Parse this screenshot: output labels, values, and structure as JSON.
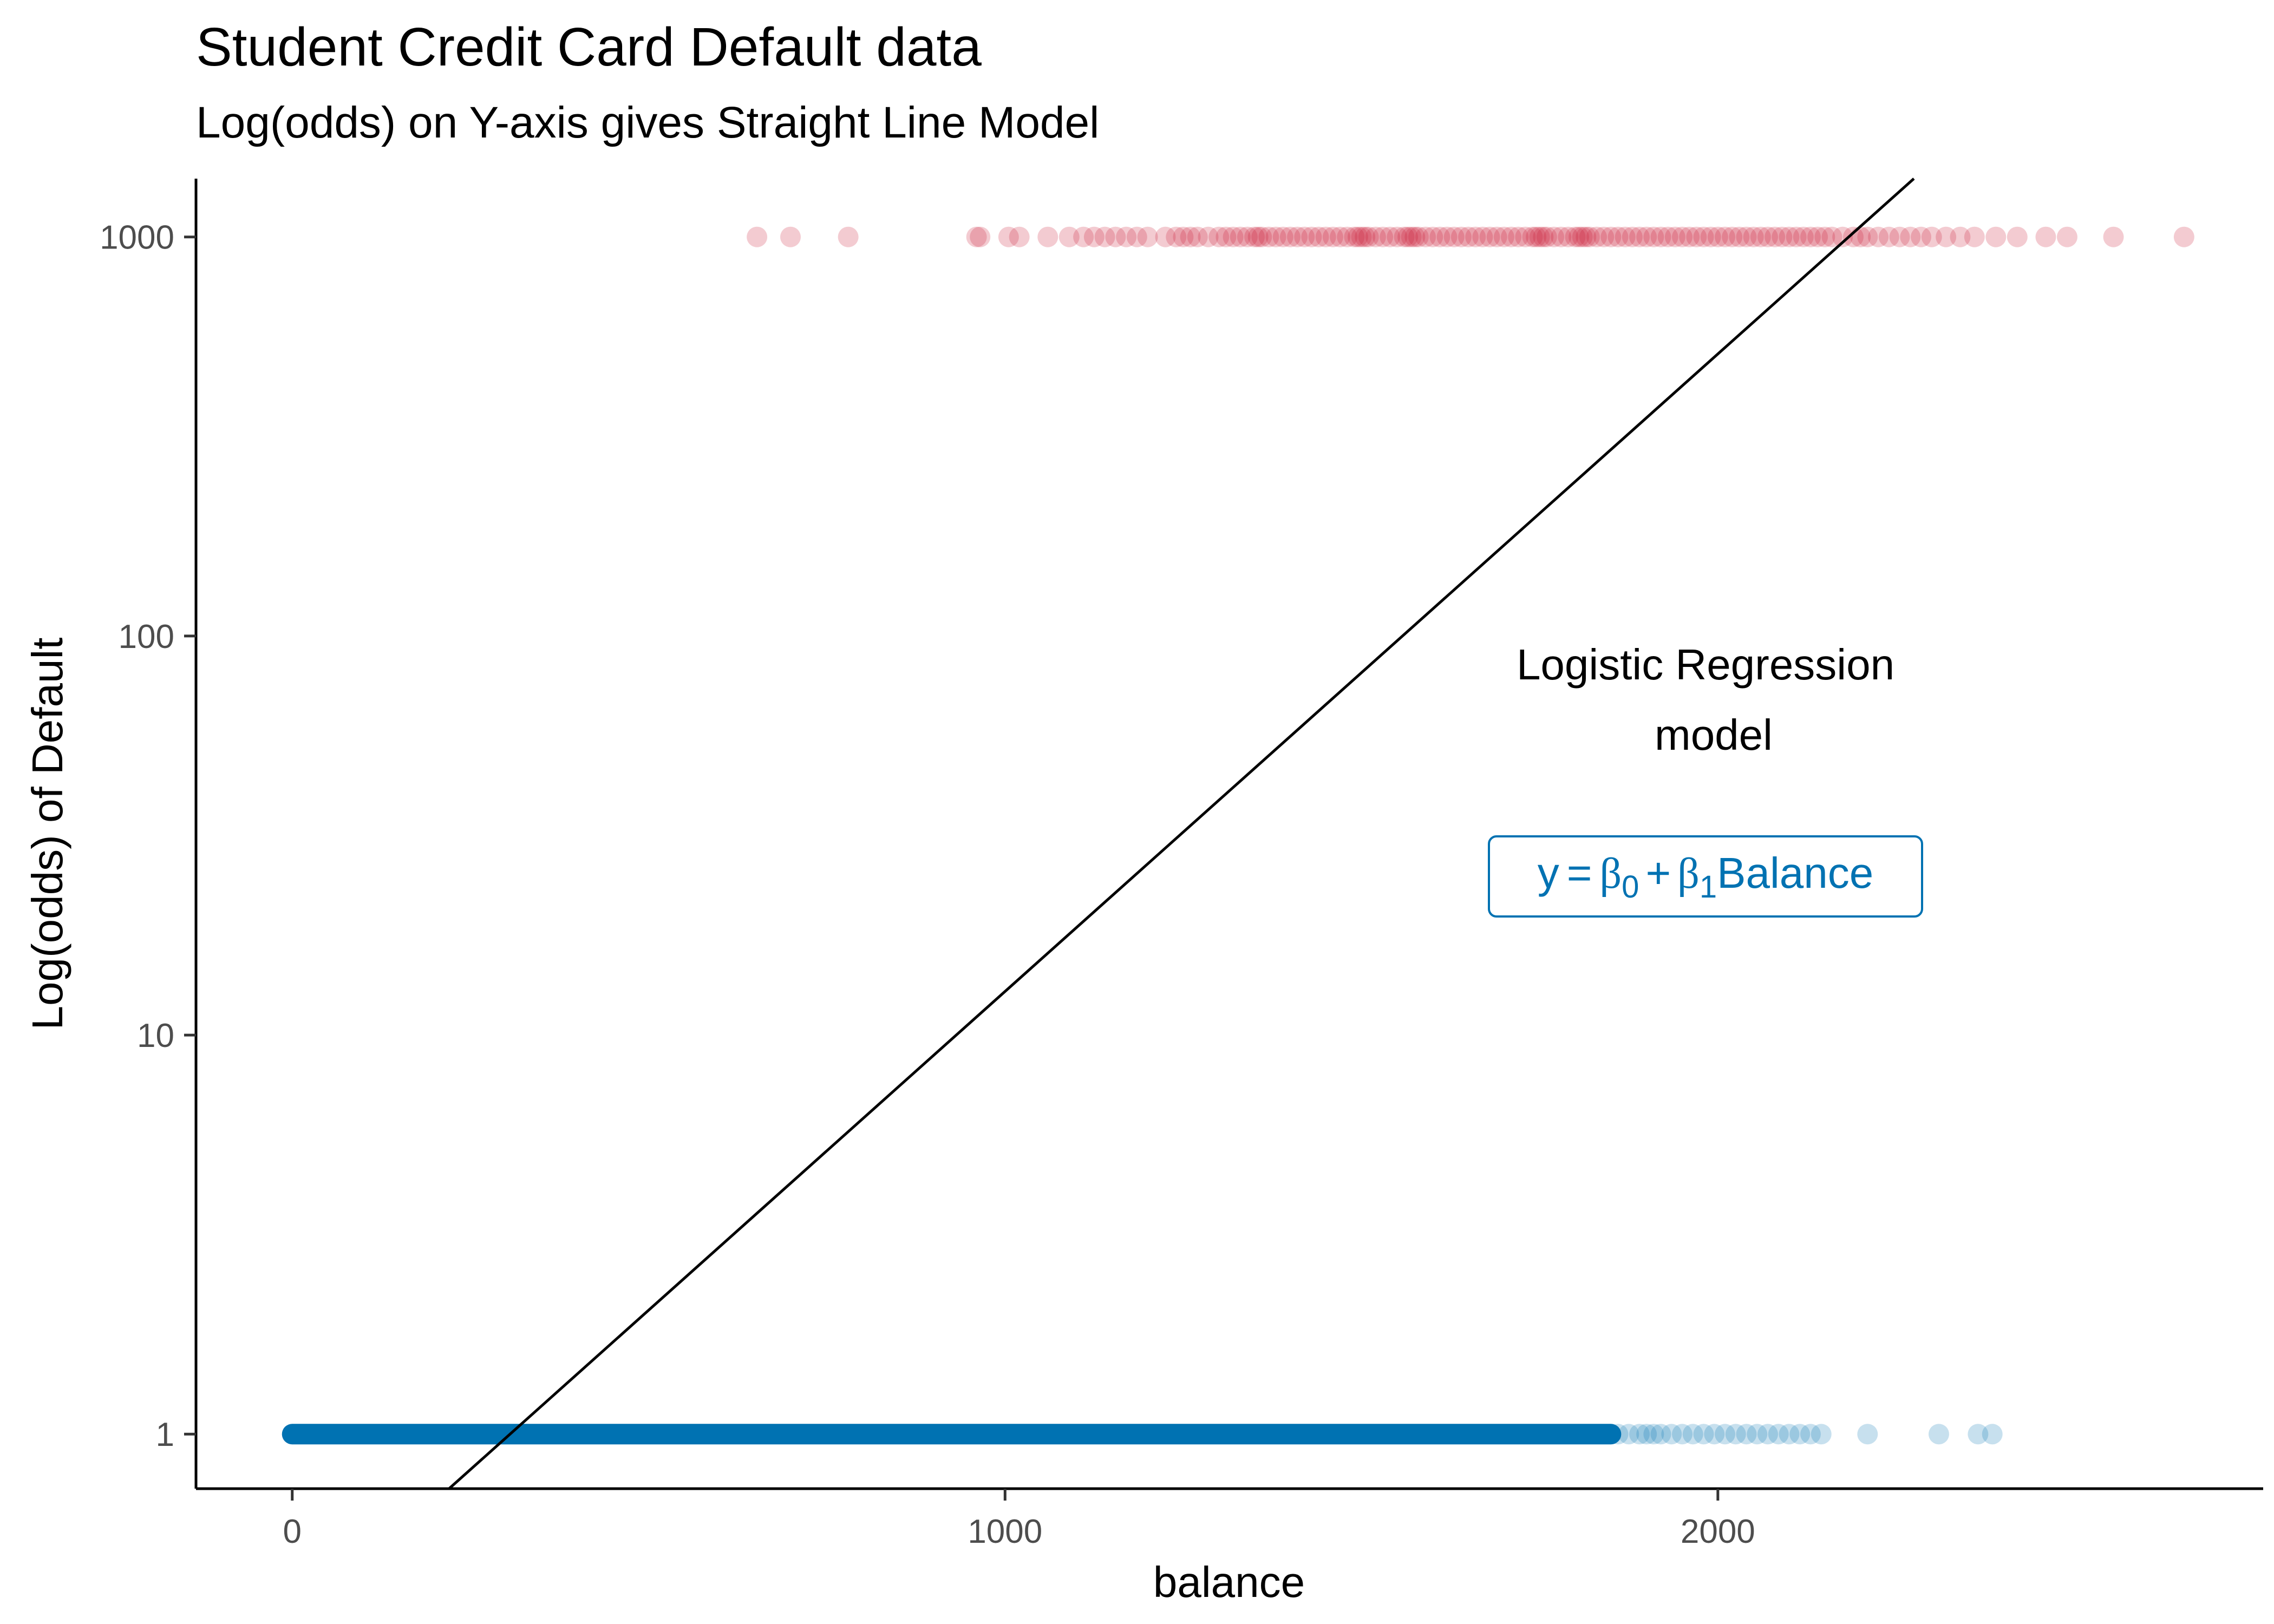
{
  "title": "Student Credit Card Default data",
  "subtitle": "Log(odds) on Y-axis gives Straight Line Model",
  "annotation": {
    "line1": "Logistic Regression",
    "line2": "model"
  },
  "equation": {
    "lhs": "y",
    "eq": "=",
    "b0": "β",
    "b0_sub": "0",
    "plus": "+",
    "b1": "β",
    "b1_sub": "1",
    "term": "Balance"
  },
  "colors": {
    "default_points": "#c8102e",
    "nondefault_points": "#0072b2",
    "line": "#000000",
    "equation": "#0072b2"
  },
  "chart_data": {
    "type": "scatter",
    "title": "Student Credit Card Default data",
    "subtitle": "Log(odds) on Y-axis gives Straight Line Model",
    "xlabel": "balance",
    "ylabel": "Log(odds) of Default",
    "xlim": [
      -135,
      2765
    ],
    "ylim": [
      0.73,
      1400
    ],
    "y_scale": "log",
    "x_ticks": [
      0,
      1000,
      2000
    ],
    "x_tick_labels": [
      "0",
      "1000",
      "2000"
    ],
    "y_ticks": [
      1,
      10,
      100,
      1000
    ],
    "y_tick_labels": [
      "1",
      "10",
      "100",
      "1000"
    ],
    "grid": false,
    "legend": "none",
    "series": [
      {
        "y": 1000,
        "x": [
          652,
          699,
          780,
          960,
          965,
          1005,
          1020,
          1060,
          1090,
          1110,
          1125,
          1140,
          1155,
          1170,
          1185,
          1200,
          1225,
          1240,
          1250,
          1260,
          1270,
          1285,
          1300,
          1310,
          1320,
          1330,
          1340,
          1350,
          1355,
          1360,
          1370,
          1380,
          1390,
          1400,
          1410,
          1420,
          1430,
          1440,
          1450,
          1460,
          1470,
          1480,
          1490,
          1495,
          1500,
          1505,
          1510,
          1520,
          1530,
          1540,
          1550,
          1560,
          1565,
          1570,
          1575,
          1580,
          1590,
          1600,
          1610,
          1620,
          1630,
          1640,
          1650,
          1660,
          1670,
          1680,
          1690,
          1700,
          1710,
          1720,
          1730,
          1740,
          1745,
          1750,
          1755,
          1760,
          1770,
          1780,
          1790,
          1800,
          1805,
          1810,
          1815,
          1820,
          1830,
          1840,
          1850,
          1860,
          1870,
          1880,
          1890,
          1900,
          1910,
          1920,
          1930,
          1940,
          1950,
          1960,
          1970,
          1980,
          1990,
          2000,
          2010,
          2020,
          2030,
          2040,
          2050,
          2060,
          2070,
          2080,
          2090,
          2100,
          2110,
          2120,
          2130,
          2140,
          2150,
          2160,
          2175,
          2190,
          2200,
          2210,
          2225,
          2240,
          2255,
          2270,
          2285,
          2300,
          2320,
          2340,
          2360,
          2390,
          2420,
          2460,
          2490,
          2555,
          2654
        ]
      },
      {
        "y": 1,
        "x_range": [
          0,
          1850
        ],
        "x": [
          1860,
          1875,
          1890,
          1900,
          1910,
          1920,
          1935,
          1950,
          1965,
          1980,
          1995,
          2010,
          2025,
          2040,
          2055,
          2070,
          2085,
          2100,
          2115,
          2130,
          2145,
          2210,
          2310,
          2365,
          2385
        ]
      }
    ],
    "fit_line": {
      "type": "linear-in-log-odds",
      "x": [
        220,
        2275
      ],
      "y": [
        0.73,
        1400
      ]
    }
  }
}
